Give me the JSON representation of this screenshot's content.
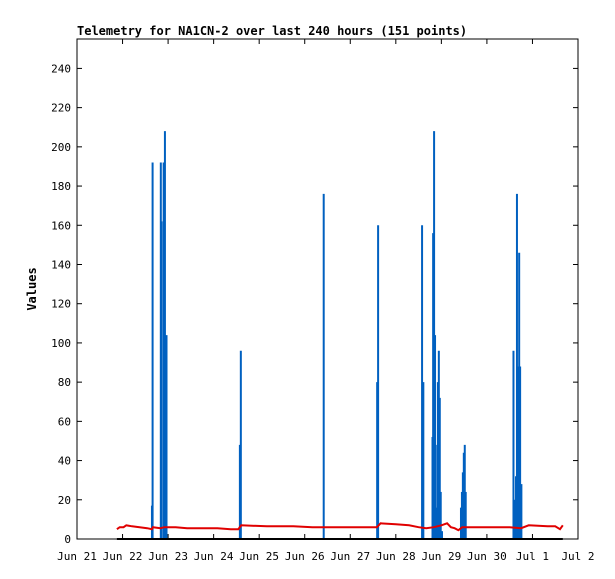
{
  "chart_data": {
    "type": "line",
    "title": "Telemetry for NA1CN-2 over last 240 hours (151 points)",
    "xlabel": "",
    "ylabel": "Values",
    "ylim": [
      0,
      255
    ],
    "xlim": [
      "2019-06-21T00:00",
      "2019-07-02T00:00"
    ],
    "yticks": [
      0,
      20,
      40,
      60,
      80,
      100,
      120,
      140,
      160,
      180,
      200,
      220,
      240
    ],
    "xticks": [
      {
        "x": "2019-06-21T00:00",
        "label": "Jun 21"
      },
      {
        "x": "2019-06-22T00:00",
        "label": "Jun 22"
      },
      {
        "x": "2019-06-23T00:00",
        "label": "Jun 23"
      },
      {
        "x": "2019-06-24T00:00",
        "label": "Jun 24"
      },
      {
        "x": "2019-06-25T00:00",
        "label": "Jun 25"
      },
      {
        "x": "2019-06-26T00:00",
        "label": "Jun 26"
      },
      {
        "x": "2019-06-27T00:00",
        "label": "Jun 27"
      },
      {
        "x": "2019-06-28T00:00",
        "label": "Jun 28"
      },
      {
        "x": "2019-06-29T00:00",
        "label": "Jun 29"
      },
      {
        "x": "2019-06-30T00:00",
        "label": "Jun 30"
      },
      {
        "x": "2019-07-01T00:00",
        "label": "Jul 1"
      },
      {
        "x": "2019-07-02T00:00",
        "label": "Jul 2"
      }
    ],
    "grid": false,
    "legend": "none",
    "colors": {
      "series_0": "#0060c0",
      "series_1": "#e00000",
      "series_2": "#000000"
    },
    "series": [
      {
        "style": "impulse",
        "points": [
          [
            "2019-06-22T15:30",
            17
          ],
          [
            "2019-06-22T15:50",
            192
          ],
          [
            "2019-06-22T20:10",
            192
          ],
          [
            "2019-06-22T20:30",
            162
          ],
          [
            "2019-06-22T21:40",
            192
          ],
          [
            "2019-06-22T22:20",
            208
          ],
          [
            "2019-06-22T23:10",
            104
          ],
          [
            "2019-06-24T13:50",
            48
          ],
          [
            "2019-06-24T14:20",
            96
          ],
          [
            "2019-06-26T10:00",
            176
          ],
          [
            "2019-06-27T14:10",
            80
          ],
          [
            "2019-06-27T14:40",
            160
          ],
          [
            "2019-06-28T13:50",
            160
          ],
          [
            "2019-06-28T14:30",
            80
          ],
          [
            "2019-06-28T19:20",
            52
          ],
          [
            "2019-06-28T19:40",
            156
          ],
          [
            "2019-06-28T20:10",
            208
          ],
          [
            "2019-06-28T20:40",
            104
          ],
          [
            "2019-06-28T21:20",
            16
          ],
          [
            "2019-06-28T21:50",
            48
          ],
          [
            "2019-06-28T22:10",
            80
          ],
          [
            "2019-06-28T22:40",
            96
          ],
          [
            "2019-06-28T23:10",
            72
          ],
          [
            "2019-06-28T23:40",
            24
          ],
          [
            "2019-06-29T00:20",
            4
          ],
          [
            "2019-06-29T10:20",
            16
          ],
          [
            "2019-06-29T10:50",
            24
          ],
          [
            "2019-06-29T11:20",
            34
          ],
          [
            "2019-06-29T11:50",
            44
          ],
          [
            "2019-06-29T12:20",
            48
          ],
          [
            "2019-06-29T12:50",
            24
          ],
          [
            "2019-06-30T14:00",
            96
          ],
          [
            "2019-06-30T14:30",
            20
          ],
          [
            "2019-06-30T15:20",
            32
          ],
          [
            "2019-06-30T15:50",
            176
          ],
          [
            "2019-06-30T16:30",
            88
          ],
          [
            "2019-06-30T17:00",
            146
          ],
          [
            "2019-06-30T17:30",
            88
          ],
          [
            "2019-06-30T18:10",
            28
          ]
        ]
      },
      {
        "style": "line",
        "points": [
          [
            "2019-06-21T21:00",
            5
          ],
          [
            "2019-06-21T22:30",
            6
          ],
          [
            "2019-06-22T00:30",
            6
          ],
          [
            "2019-06-22T02:00",
            7
          ],
          [
            "2019-06-22T05:00",
            6.5
          ],
          [
            "2019-06-22T09:00",
            6
          ],
          [
            "2019-06-22T13:00",
            5.5
          ],
          [
            "2019-06-22T15:30",
            5
          ],
          [
            "2019-06-22T16:00",
            6
          ],
          [
            "2019-06-22T20:00",
            5.5
          ],
          [
            "2019-06-22T22:00",
            6
          ],
          [
            "2019-06-23T04:00",
            6
          ],
          [
            "2019-06-23T10:00",
            5.5
          ],
          [
            "2019-06-23T18:00",
            5.5
          ],
          [
            "2019-06-24T02:00",
            5.5
          ],
          [
            "2019-06-24T09:00",
            5
          ],
          [
            "2019-06-24T13:00",
            5
          ],
          [
            "2019-06-24T14:30",
            7
          ],
          [
            "2019-06-25T04:00",
            6.5
          ],
          [
            "2019-06-25T18:00",
            6.5
          ],
          [
            "2019-06-26T04:00",
            6
          ],
          [
            "2019-06-26T12:00",
            6
          ],
          [
            "2019-06-26T22:00",
            6
          ],
          [
            "2019-06-27T08:00",
            6
          ],
          [
            "2019-06-27T14:00",
            6
          ],
          [
            "2019-06-27T16:00",
            8
          ],
          [
            "2019-06-28T00:00",
            7.5
          ],
          [
            "2019-06-28T07:00",
            7
          ],
          [
            "2019-06-28T12:00",
            6
          ],
          [
            "2019-06-28T16:00",
            5.5
          ],
          [
            "2019-06-28T20:00",
            6
          ],
          [
            "2019-06-29T00:00",
            7
          ],
          [
            "2019-06-29T03:00",
            8
          ],
          [
            "2019-06-29T05:00",
            6
          ],
          [
            "2019-06-29T07:00",
            5.5
          ],
          [
            "2019-06-29T09:00",
            4.5
          ],
          [
            "2019-06-29T11:00",
            6
          ],
          [
            "2019-06-29T18:00",
            6
          ],
          [
            "2019-06-30T04:00",
            6
          ],
          [
            "2019-06-30T12:00",
            6
          ],
          [
            "2019-06-30T18:00",
            5.5
          ],
          [
            "2019-06-30T22:00",
            7
          ],
          [
            "2019-07-01T08:00",
            6.5
          ],
          [
            "2019-07-01T12:00",
            6.5
          ],
          [
            "2019-07-01T14:30",
            5
          ],
          [
            "2019-07-01T16:00",
            7
          ]
        ]
      },
      {
        "style": "line",
        "points": [
          [
            "2019-06-21T21:00",
            0
          ],
          [
            "2019-07-01T16:00",
            0
          ]
        ]
      }
    ]
  }
}
